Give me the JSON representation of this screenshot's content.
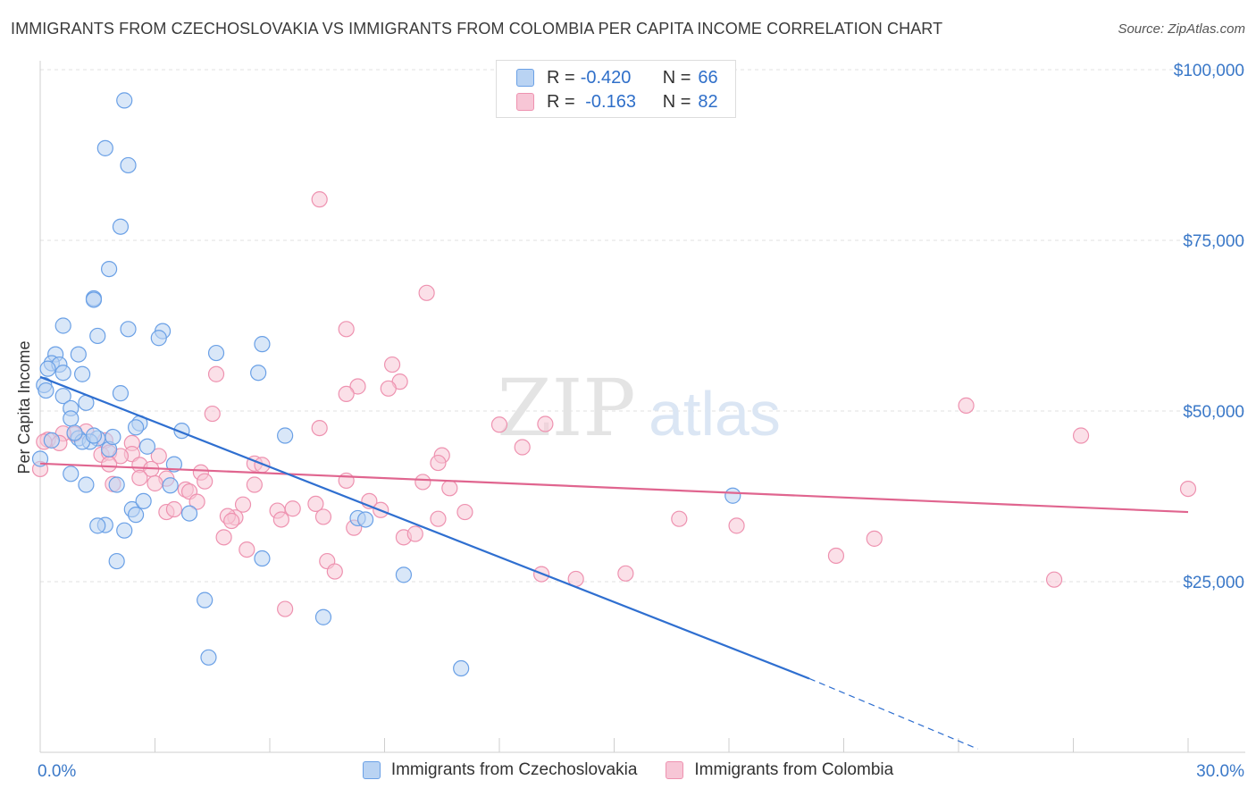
{
  "header": {
    "title": "IMMIGRANTS FROM CZECHOSLOVAKIA VS IMMIGRANTS FROM COLOMBIA PER CAPITA INCOME CORRELATION CHART",
    "source": "Source: ZipAtlas.com"
  },
  "legend": {
    "rows": [
      {
        "r_label": "R =",
        "r_value": "-0.420",
        "n_label": "N =",
        "n_value": "66"
      },
      {
        "r_label": "R =",
        "r_value": " -0.163",
        "n_label": "N =",
        "n_value": "82"
      }
    ]
  },
  "watermark": {
    "zip": "ZIP",
    "atlas": "atlas"
  },
  "colors": {
    "czech": "#6aa0e6",
    "czech_fill": "#b9d3f3",
    "czech_line": "#2f6fd0",
    "colombia": "#ee92b0",
    "colombia_fill": "#f7c6d6",
    "colombia_line": "#e0658f",
    "axis_label": "#3a78c8"
  },
  "chart_data": {
    "type": "scatter",
    "title": "IMMIGRANTS FROM CZECHOSLOVAKIA VS IMMIGRANTS FROM COLOMBIA PER CAPITA INCOME CORRELATION CHART",
    "xlabel": "",
    "ylabel": "Per Capita Income",
    "xlim": [
      0,
      30
    ],
    "ylim": [
      0,
      100000
    ],
    "x_tick_labels": [
      "0.0%",
      "30.0%"
    ],
    "y_ticks": [
      25000,
      50000,
      75000,
      100000
    ],
    "y_tick_labels": [
      "$25,000",
      "$50,000",
      "$75,000",
      "$100,000"
    ],
    "grid": true,
    "legend_position": "bottom",
    "series": [
      {
        "name": "Immigrants from Czechoslovakia",
        "r": -0.42,
        "n": 66,
        "trend": {
          "x0": 0,
          "y0": 55000,
          "x1": 20.1,
          "y1": 10800,
          "dash_to_x": 24.5,
          "dash_to_y": 500
        },
        "points": [
          [
            2.2,
            95500
          ],
          [
            1.7,
            88500
          ],
          [
            2.3,
            86000
          ],
          [
            2.1,
            77000
          ],
          [
            1.8,
            70800
          ],
          [
            1.4,
            66500
          ],
          [
            1.4,
            66300
          ],
          [
            0.6,
            62500
          ],
          [
            1.5,
            61000
          ],
          [
            2.3,
            62000
          ],
          [
            3.2,
            61700
          ],
          [
            3.1,
            60700
          ],
          [
            5.8,
            59800
          ],
          [
            0.4,
            58300
          ],
          [
            4.6,
            58500
          ],
          [
            1.0,
            58300
          ],
          [
            0.3,
            57000
          ],
          [
            0.5,
            56800
          ],
          [
            0.2,
            56200
          ],
          [
            0.6,
            55600
          ],
          [
            1.1,
            55400
          ],
          [
            5.7,
            55600
          ],
          [
            0.1,
            53800
          ],
          [
            0.15,
            53000
          ],
          [
            2.1,
            52600
          ],
          [
            0.6,
            52200
          ],
          [
            1.2,
            51200
          ],
          [
            0.8,
            50400
          ],
          [
            0.8,
            48900
          ],
          [
            2.6,
            48200
          ],
          [
            2.5,
            47600
          ],
          [
            3.7,
            47100
          ],
          [
            6.4,
            46400
          ],
          [
            1.0,
            46000
          ],
          [
            1.5,
            46000
          ],
          [
            1.3,
            45500
          ],
          [
            1.1,
            45500
          ],
          [
            1.8,
            44400
          ],
          [
            2.8,
            44800
          ],
          [
            0.0,
            43000
          ],
          [
            3.5,
            42200
          ],
          [
            0.8,
            40800
          ],
          [
            1.2,
            39200
          ],
          [
            2.0,
            39200
          ],
          [
            3.4,
            39100
          ],
          [
            2.4,
            35600
          ],
          [
            3.9,
            35000
          ],
          [
            8.3,
            34300
          ],
          [
            8.5,
            34100
          ],
          [
            2.5,
            34800
          ],
          [
            1.7,
            33300
          ],
          [
            1.5,
            33200
          ],
          [
            2.2,
            32500
          ],
          [
            2.7,
            36800
          ],
          [
            18.1,
            37600
          ],
          [
            2.0,
            28000
          ],
          [
            5.8,
            28400
          ],
          [
            9.5,
            26000
          ],
          [
            4.3,
            22300
          ],
          [
            7.4,
            19800
          ],
          [
            4.4,
            13900
          ],
          [
            11.0,
            12300
          ],
          [
            0.9,
            46800
          ],
          [
            1.9,
            46200
          ],
          [
            1.4,
            46400
          ],
          [
            0.3,
            45700
          ]
        ]
      },
      {
        "name": "Immigrants from Colombia",
        "r": -0.163,
        "n": 82,
        "trend": {
          "x0": 0,
          "y0": 42300,
          "x1": 30,
          "y1": 35200
        },
        "points": [
          [
            7.3,
            81000
          ],
          [
            10.1,
            67300
          ],
          [
            8.0,
            62000
          ],
          [
            9.2,
            56800
          ],
          [
            4.6,
            55400
          ],
          [
            9.4,
            54300
          ],
          [
            8.3,
            53600
          ],
          [
            9.1,
            53300
          ],
          [
            8.0,
            52500
          ],
          [
            4.5,
            49600
          ],
          [
            24.2,
            50800
          ],
          [
            12.0,
            48000
          ],
          [
            7.3,
            47500
          ],
          [
            1.2,
            47000
          ],
          [
            0.9,
            46600
          ],
          [
            0.6,
            46700
          ],
          [
            0.2,
            45800
          ],
          [
            0.5,
            45300
          ],
          [
            1.7,
            45700
          ],
          [
            2.4,
            45300
          ],
          [
            12.6,
            44700
          ],
          [
            27.2,
            46400
          ],
          [
            1.6,
            43600
          ],
          [
            1.8,
            43900
          ],
          [
            2.4,
            43700
          ],
          [
            3.1,
            43400
          ],
          [
            2.1,
            43400
          ],
          [
            10.5,
            43500
          ],
          [
            10.4,
            42400
          ],
          [
            2.6,
            42100
          ],
          [
            5.6,
            42300
          ],
          [
            5.8,
            42100
          ],
          [
            2.9,
            41500
          ],
          [
            1.8,
            42200
          ],
          [
            4.2,
            41000
          ],
          [
            2.6,
            40200
          ],
          [
            3.3,
            40100
          ],
          [
            3.0,
            39400
          ],
          [
            1.9,
            39300
          ],
          [
            4.3,
            39700
          ],
          [
            8.0,
            39800
          ],
          [
            10.0,
            39600
          ],
          [
            10.7,
            38700
          ],
          [
            5.6,
            39200
          ],
          [
            3.8,
            38500
          ],
          [
            3.9,
            38200
          ],
          [
            4.1,
            36700
          ],
          [
            5.3,
            36300
          ],
          [
            7.2,
            36400
          ],
          [
            8.6,
            36800
          ],
          [
            8.9,
            35500
          ],
          [
            6.6,
            35700
          ],
          [
            6.2,
            35400
          ],
          [
            3.3,
            35200
          ],
          [
            3.5,
            35600
          ],
          [
            5.1,
            34400
          ],
          [
            6.3,
            34100
          ],
          [
            7.4,
            34500
          ],
          [
            11.1,
            35200
          ],
          [
            10.4,
            34200
          ],
          [
            16.7,
            34200
          ],
          [
            18.2,
            33200
          ],
          [
            4.9,
            34600
          ],
          [
            5.0,
            33900
          ],
          [
            8.2,
            32900
          ],
          [
            9.5,
            31500
          ],
          [
            9.8,
            32000
          ],
          [
            4.8,
            31500
          ],
          [
            21.8,
            31300
          ],
          [
            5.4,
            29700
          ],
          [
            20.8,
            28800
          ],
          [
            7.5,
            28000
          ],
          [
            7.7,
            26500
          ],
          [
            13.1,
            26100
          ],
          [
            14.0,
            25400
          ],
          [
            15.3,
            26200
          ],
          [
            26.5,
            25300
          ],
          [
            6.4,
            21000
          ],
          [
            13.2,
            48100
          ],
          [
            30.0,
            38600
          ],
          [
            0.0,
            41500
          ],
          [
            0.1,
            45500
          ]
        ]
      }
    ]
  },
  "axes": {
    "y_axis_title": "Per Capita Income",
    "x_min_label": "0.0%",
    "x_max_label": "30.0%"
  },
  "bottom_legend": {
    "czech_label": "Immigrants from Czechoslovakia",
    "colombia_label": "Immigrants from Colombia"
  }
}
